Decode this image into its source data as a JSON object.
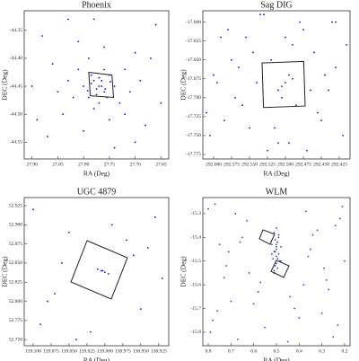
{
  "chart_data": [
    {
      "type": "scatter",
      "title": "Phoenix",
      "xlabel": "RA (Deg)",
      "ylabel": "DEC (Deg)",
      "color": "#1010c8",
      "xlim": [
        27.915,
        27.635
      ],
      "ylim": [
        -44.58,
        -44.315
      ],
      "xticks": [
        {
          "value": 27.9,
          "label": "27.90"
        },
        27.85,
        {
          "value": 27.8,
          "label": "27.80"
        },
        27.75,
        {
          "value": 27.7,
          "label": "27.70"
        },
        27.65
      ],
      "yticks": [
        -44.35,
        {
          "value": -44.4,
          "label": "-44.40"
        },
        -44.45,
        {
          "value": -44.5,
          "label": "-44.50"
        },
        -44.55
      ],
      "x": [
        27.77,
        27.78,
        27.76,
        27.775,
        27.765,
        27.79,
        27.75,
        27.785,
        27.755,
        27.77,
        27.8,
        27.74,
        27.78,
        27.76,
        27.81,
        27.73,
        27.82,
        27.72,
        27.79,
        27.75,
        27.83,
        27.71,
        27.84,
        27.7,
        27.86,
        27.68,
        27.88,
        27.66,
        27.87,
        27.65,
        27.9,
        27.78,
        27.74,
        27.81,
        27.69,
        27.85,
        27.76,
        27.8,
        27.72,
        27.89,
        27.67,
        27.83,
        27.7,
        27.775,
        27.765,
        27.785,
        27.758,
        27.792,
        27.748,
        27.77
      ],
      "y": [
        -44.45,
        -44.44,
        -44.46,
        -44.455,
        -44.44,
        -44.47,
        -44.43,
        -44.43,
        -44.47,
        -44.48,
        -44.45,
        -44.45,
        -44.49,
        -44.42,
        -44.42,
        -44.48,
        -44.47,
        -44.42,
        -44.4,
        -44.51,
        -44.44,
        -44.46,
        -44.5,
        -44.39,
        -44.41,
        -44.52,
        -44.36,
        -44.34,
        -44.54,
        -44.48,
        -44.45,
        -44.33,
        -44.56,
        -44.37,
        -44.44,
        -44.46,
        -44.38,
        -44.53,
        -44.5,
        -44.51,
        -44.4,
        -44.33,
        -44.55,
        -44.465,
        -44.45,
        -44.445,
        -44.455,
        -44.458,
        -44.442,
        -44.435
      ],
      "boxes": [
        {
          "x": [
            27.79,
            27.745,
            27.742,
            27.787
          ],
          "y": [
            -44.425,
            -44.43,
            -44.47,
            -44.467
          ]
        }
      ]
    },
    {
      "type": "scatter",
      "title": "Sag DIG",
      "xlabel": "RA (Deg)",
      "ylabel": "DEC (Deg)",
      "color": "#1010c8",
      "xlim": [
        292.615,
        292.41
      ],
      "ylim": [
        -17.781,
        -17.585
      ],
      "xticks": [
        {
          "value": 292.6,
          "label": "292.600"
        },
        292.575,
        {
          "value": 292.55,
          "label": "292.550"
        },
        292.525,
        {
          "value": 292.5,
          "label": "292.500"
        },
        292.475,
        {
          "value": 292.45,
          "label": "292.450"
        },
        292.425
      ],
      "yticks": [
        {
          "value": -17.6,
          "label": "-17.600"
        },
        -17.625,
        {
          "value": -17.65,
          "label": "-17.650"
        },
        -17.675,
        {
          "value": -17.7,
          "label": "-17.700"
        },
        -17.725,
        {
          "value": -17.75,
          "label": "-17.750"
        },
        -17.775
      ],
      "x": [
        292.43,
        292.61,
        292.52,
        292.47,
        292.58,
        292.44,
        292.55,
        292.49,
        292.6,
        292.42,
        292.53,
        292.57,
        292.46,
        292.51,
        292.59,
        292.45,
        292.54,
        292.48,
        292.56,
        292.43,
        292.5,
        292.605,
        292.465,
        292.535,
        292.585,
        292.415,
        292.525,
        292.475,
        292.565,
        292.455,
        292.545,
        292.495,
        292.595,
        292.435,
        292.515,
        292.575,
        292.485,
        292.555,
        292.445,
        292.505,
        292.5,
        292.51,
        292.495,
        292.505,
        292.49
      ],
      "y": [
        -17.6,
        -17.72,
        -17.65,
        -17.77,
        -17.61,
        -17.69,
        -17.74,
        -17.63,
        -17.67,
        -17.75,
        -17.59,
        -17.7,
        -17.64,
        -17.76,
        -17.62,
        -17.73,
        -17.68,
        -17.6,
        -17.71,
        -17.66,
        -17.62,
        -17.75,
        -17.69,
        -17.59,
        -17.73,
        -17.63,
        -17.77,
        -17.61,
        -17.66,
        -17.72,
        -17.64,
        -17.76,
        -17.68,
        -17.6,
        -17.74,
        -17.65,
        -17.71,
        -17.62,
        -17.67,
        -17.7,
        -17.68,
        -17.69,
        -17.67,
        -17.685,
        -17.675
      ],
      "boxes": [
        {
          "x": [
            292.5325,
            292.4745,
            292.4725,
            292.5305
          ],
          "y": [
            -17.654,
            -17.652,
            -17.711,
            -17.713
          ]
        }
      ]
    },
    {
      "type": "scatter",
      "title": "UGC 4879",
      "xlabel": "RA (Deg)",
      "ylabel": "DEC (Deg)",
      "color": "#1010c8",
      "xlim": [
        139.1125,
        138.911
      ],
      "ylim": [
        52.742,
        52.9356
      ],
      "xticks": [
        {
          "value": 139.1,
          "label": "139.100"
        },
        139.075,
        {
          "value": 139.05,
          "label": "139.050"
        },
        139.025,
        {
          "value": 139,
          "label": "139.000"
        },
        138.975,
        {
          "value": 138.95,
          "label": "138.950"
        },
        138.925
      ],
      "yticks": [
        52.925,
        {
          "value": 52.9,
          "label": "52.900"
        },
        52.875,
        {
          "value": 52.85,
          "label": "52.850"
        },
        52.825,
        {
          "value": 52.8,
          "label": "52.800"
        },
        52.775,
        {
          "value": 52.75,
          "label": "52.750"
        }
      ],
      "x": [
        139.1,
        138.93,
        139.05,
        138.97,
        139.08,
        138.95,
        139.02,
        139.06,
        138.92,
        139.09,
        138.99,
        139.04,
        138.96,
        139.07,
        138.94,
        139.005,
        139.0,
        139.01,
        138.995,
        139.003
      ],
      "y": [
        52.92,
        52.91,
        52.89,
        52.88,
        52.8,
        52.79,
        52.76,
        52.85,
        52.83,
        52.77,
        52.9,
        52.75,
        52.86,
        52.81,
        52.87,
        52.84,
        52.838,
        52.842,
        52.836,
        52.84
      ],
      "boxes": [
        {
          "x": [
            139.0249,
            138.9686,
            138.9911,
            139.0474
          ],
          "y": [
            52.8793,
            52.857,
            52.803,
            52.8253
          ]
        }
      ]
    },
    {
      "type": "scatter",
      "title": "WLM",
      "xlabel": "RA (Deg)",
      "ylabel": "DEC (Deg)",
      "color": "#3a3ae0",
      "xlim": [
        0.8237,
        0.176
      ],
      "ylim": [
        -15.857,
        -15.232
      ],
      "xticks": [
        0.8,
        0.7,
        0.6,
        0.5,
        0.4,
        0.3,
        0.2
      ],
      "yticks": [
        -15.3,
        -15.4,
        -15.5,
        -15.6,
        -15.7,
        -15.8
      ],
      "x": [
        0.8,
        0.22,
        0.65,
        0.35,
        0.72,
        0.28,
        0.58,
        0.42,
        0.78,
        0.25,
        0.68,
        0.32,
        0.75,
        0.2,
        0.62,
        0.38,
        0.7,
        0.3,
        0.55,
        0.45,
        0.77,
        0.24,
        0.66,
        0.36,
        0.73,
        0.27,
        0.6,
        0.4,
        0.79,
        0.21,
        0.63,
        0.34,
        0.71,
        0.29,
        0.57,
        0.44,
        0.76,
        0.23,
        0.67,
        0.37,
        0.5,
        0.51,
        0.49,
        0.505,
        0.495,
        0.52,
        0.48,
        0.5,
        0.51,
        0.49,
        0.5,
        0.515,
        0.485,
        0.5,
        0.505,
        0.495,
        0.51,
        0.49,
        0.5,
        0.52,
        0.48,
        0.5,
        0.505,
        0.495,
        0.51
      ],
      "y": [
        -15.28,
        -15.32,
        -15.4,
        -15.45,
        -15.52,
        -15.58,
        -15.63,
        -15.7,
        -15.75,
        -15.82,
        -15.3,
        -15.37,
        -15.43,
        -15.5,
        -15.55,
        -15.6,
        -15.67,
        -15.72,
        -15.78,
        -15.84,
        -15.26,
        -15.35,
        -15.42,
        -15.48,
        -15.57,
        -15.62,
        -15.68,
        -15.74,
        -15.8,
        -15.27,
        -15.33,
        -15.39,
        -15.46,
        -15.53,
        -15.59,
        -15.65,
        -15.71,
        -15.77,
        -15.83,
        -15.29,
        -15.36,
        -15.38,
        -15.4,
        -15.41,
        -15.42,
        -15.43,
        -15.44,
        -15.45,
        -15.46,
        -15.47,
        -15.48,
        -15.49,
        -15.5,
        -15.51,
        -15.52,
        -15.53,
        -15.54,
        -15.39,
        -15.44,
        -15.47,
        -15.5,
        -15.43,
        -15.46,
        -15.49,
        -15.55
      ],
      "boxes": [
        {
          "x": [
            0.559,
            0.508,
            0.528,
            0.575
          ],
          "y": [
            -15.368,
            -15.387,
            -15.429,
            -15.406
          ]
        },
        {
          "x": [
            0.4999,
            0.4446,
            0.468,
            0.5236
          ],
          "y": [
            -15.497,
            -15.52,
            -15.569,
            -15.543
          ]
        }
      ]
    }
  ]
}
